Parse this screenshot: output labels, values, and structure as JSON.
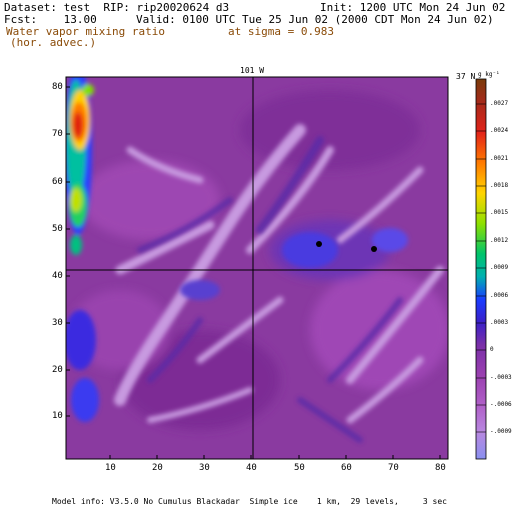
{
  "header": {
    "dataset_line": "Dataset: test  RIP: rip20020624 d3",
    "init_line": "Init: 1200 UTC Mon 24 Jun 02",
    "fcst_line": "Fcst:    13.00",
    "valid_line": "Valid: 0100 UTC Tue 25 Jun 02 (2000 CDT Mon 24 Jun 02)",
    "field_line1": "Water vapor mixing ratio",
    "field_line2": "(hor. advec.)",
    "level_line": "at sigma = 0.983"
  },
  "map": {
    "top_label_lon": "101 W",
    "top_label_lat": "37 N",
    "x_ticks": [
      "10",
      "20",
      "30",
      "40",
      "50",
      "60",
      "70",
      "80"
    ],
    "y_ticks": [
      "10",
      "20",
      "30",
      "40",
      "50",
      "60",
      "70",
      "80"
    ]
  },
  "colorbar": {
    "unit": "g kg⁻¹",
    "labels": [
      ".0027",
      ".0024",
      ".0021",
      ".0018",
      ".0015",
      ".0012",
      ".0009",
      ".0006",
      ".0003",
      "0",
      "-.0003",
      "-.0006",
      "-.0009"
    ]
  },
  "footer": {
    "model_info": "Model info: V3.5.0 No Cumulus Blackadar  Simple ice    1 km,  29 levels,     3 sec"
  }
}
